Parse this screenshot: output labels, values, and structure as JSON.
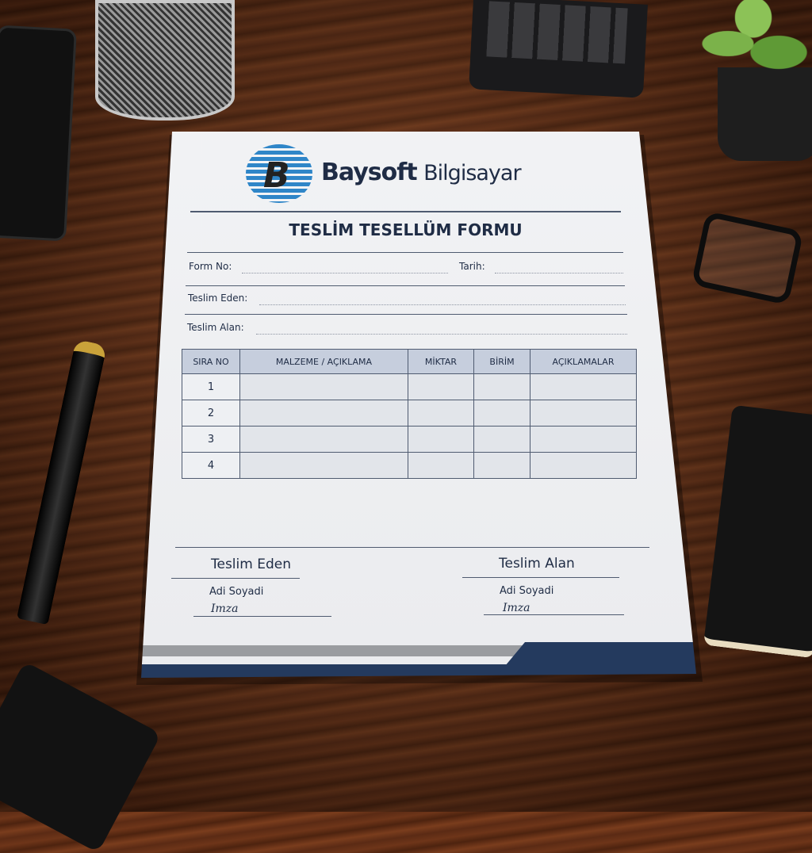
{
  "brand": {
    "name": "Baysoft",
    "suffix": "Bilgisayar"
  },
  "form": {
    "title": "TESLİM TESELLÜM FORMU",
    "fields": {
      "form_no": "Form No:",
      "tarih": "Tarih:",
      "teslim_eden": "Teslim Eden:",
      "teslim_alan": "Teslim Alan:"
    },
    "table": {
      "headers": [
        "SIRA NO",
        "MALZEME / AÇIKLAMA",
        "MİKTAR",
        "BİRİM",
        "AÇIKLAMALAR"
      ],
      "rows": [
        "1",
        "2",
        "3",
        "4"
      ]
    },
    "signatures": [
      {
        "heading": "Teslim Eden",
        "name_label": "Adi Soyadi",
        "sign_label": "Imza"
      },
      {
        "heading": "Teslim Alan",
        "name_label": "Adi Soyadi",
        "sign_label": "Imza"
      }
    ]
  },
  "colors": {
    "navy": "#1f2c45",
    "header_fill": "#c6cedd",
    "wood": "#5c2b15"
  }
}
